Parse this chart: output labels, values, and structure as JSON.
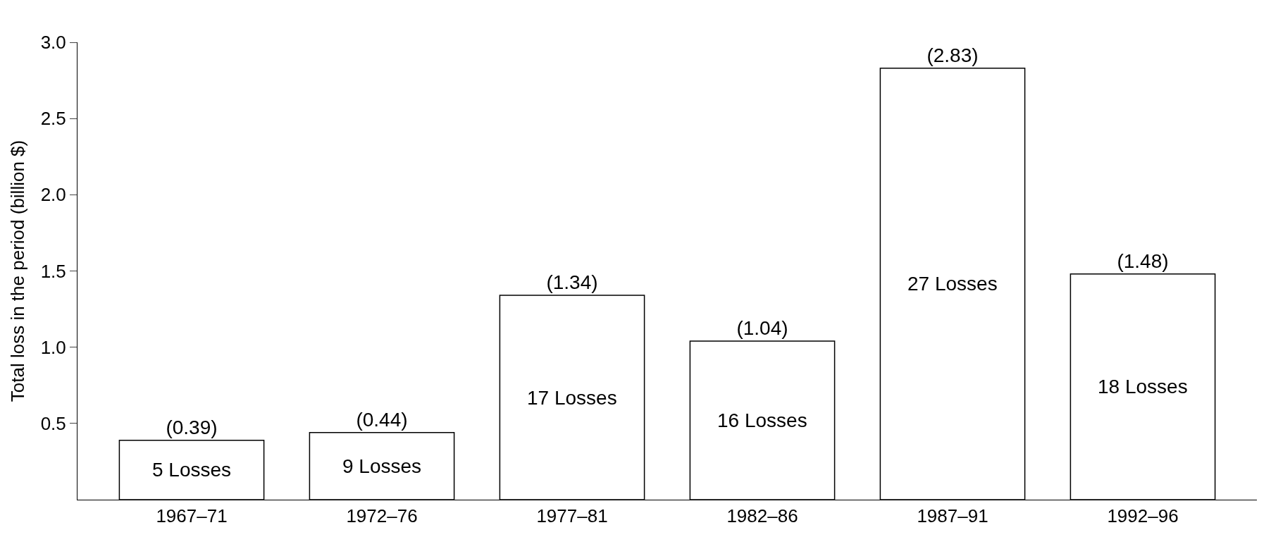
{
  "chart_data": {
    "type": "bar",
    "ylabel": "Total loss in the period (billion $)",
    "categories": [
      "1967–71",
      "1972–76",
      "1977–81",
      "1982–86",
      "1987–91",
      "1992–96"
    ],
    "values": [
      0.39,
      0.44,
      1.34,
      1.04,
      2.83,
      1.48
    ],
    "color": "#ffffff",
    "value_labels": [
      "(0.39)",
      "(0.44)",
      "(1.34)",
      "(1.04)",
      "(2.83)",
      "(1.48)"
    ],
    "annotations": [
      "5 Losses",
      "9 Losses",
      "17 Losses",
      "16 Losses",
      "27 Losses",
      "18 Losses"
    ],
    "ylim": [
      0,
      3.0
    ],
    "yticks": [
      {
        "value": 0.5,
        "label": "0.5"
      },
      {
        "value": 1,
        "label": "1.0"
      },
      {
        "value": 1.5,
        "label": "1.5"
      },
      {
        "value": 2,
        "label": "2.0"
      },
      {
        "value": 2.5,
        "label": "2.5"
      },
      {
        "value": 3,
        "label": "3.0"
      }
    ],
    "legend": false
  }
}
